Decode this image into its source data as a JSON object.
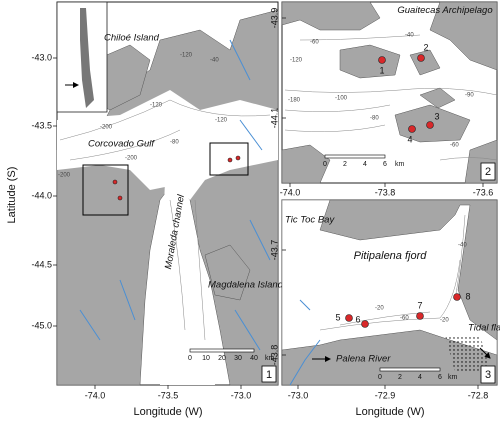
{
  "x_label": "Longitude (W)",
  "y_label": "Latitude (S)",
  "panel1": {
    "number": "1",
    "y_ticks": [
      "-43.0",
      "-43.5",
      "-44.0",
      "-44.5",
      "-45.0"
    ],
    "x_ticks": [
      "-74.0",
      "-73.5",
      "-73.0"
    ],
    "labels": {
      "chiloe": "Chiloé Island",
      "gulf": "Corcovado Gulf",
      "channel": "Moraleda channel",
      "magdalena": "Magdalena Island"
    },
    "contours": [
      "-120",
      "-200",
      "-120",
      "-80",
      "-200",
      "-40",
      "-120",
      "-200"
    ],
    "scale": [
      "0",
      "10",
      "20",
      "30",
      "40",
      "km"
    ]
  },
  "panel2": {
    "number": "2",
    "y_ticks": [
      "-43.9",
      "-44.1"
    ],
    "x_ticks": [
      "-74.0",
      "-73.8",
      "-73.6"
    ],
    "labels": {
      "archipelago": "Guaitecas Archipelago"
    },
    "stations": [
      "1",
      "2",
      "3",
      "4"
    ],
    "contours": [
      "-60",
      "-120",
      "-180",
      "-100",
      "-80",
      "-90",
      "-40",
      "-60"
    ],
    "scale": [
      "0",
      "2",
      "4",
      "6",
      "km"
    ]
  },
  "panel3": {
    "number": "3",
    "y_ticks": [
      "-43.7",
      "-43.8"
    ],
    "x_ticks": [
      "-73.0",
      "-72.9",
      "-72.8"
    ],
    "labels": {
      "bay": "Tic Toc Bay",
      "fjord": "Pitipalena fjord",
      "river": "Palena River",
      "flat": "Tidal flat"
    },
    "stations": [
      "5",
      "6",
      "7",
      "8"
    ],
    "contours": [
      "-20",
      "-60",
      "-20",
      "-40"
    ],
    "scale": [
      "0",
      "2",
      "4",
      "6",
      "km"
    ]
  }
}
